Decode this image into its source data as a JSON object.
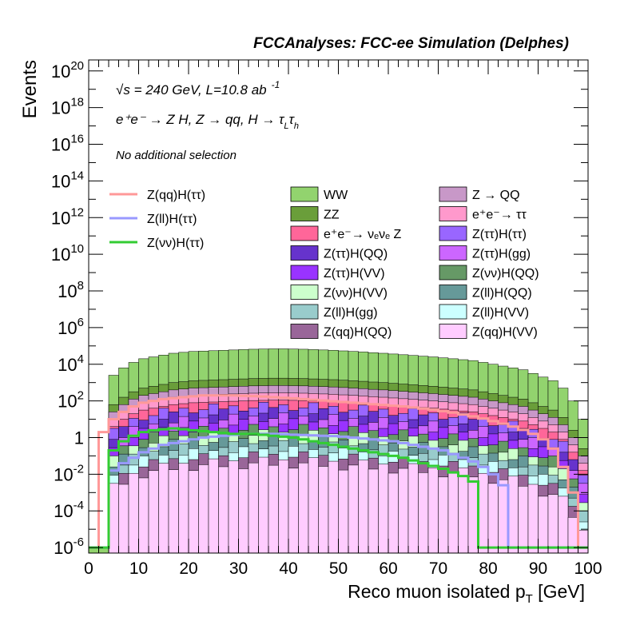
{
  "chart_data": {
    "type": "histogram",
    "title": "FCCAnalyses: FCC-ee Simulation (Delphes)",
    "xlabel": "Reco muon isolated p",
    "xlabel_sub": "T",
    "xlabel_unit": " [GeV]",
    "ylabel": "Events",
    "xlim": [
      0,
      100
    ],
    "ylim_log10": [
      -6.3,
      20.6
    ],
    "y_scale": "log",
    "bin_width": 2,
    "x_ticks": [
      "0",
      "10",
      "20",
      "30",
      "40",
      "50",
      "60",
      "70",
      "80",
      "90",
      "100"
    ],
    "y_ticks": [
      {
        "base": "10",
        "exp": "-6",
        "log": -6
      },
      {
        "base": "10",
        "exp": "-4",
        "log": -4
      },
      {
        "base": "10",
        "exp": "-2",
        "log": -2
      },
      {
        "base": "1",
        "exp": "",
        "log": 0
      },
      {
        "base": "10",
        "exp": "2",
        "log": 2
      },
      {
        "base": "10",
        "exp": "4",
        "log": 4
      },
      {
        "base": "10",
        "exp": "6",
        "log": 6
      },
      {
        "base": "10",
        "exp": "8",
        "log": 8
      },
      {
        "base": "10",
        "exp": "10",
        "log": 10
      },
      {
        "base": "10",
        "exp": "12",
        "log": 12
      },
      {
        "base": "10",
        "exp": "14",
        "log": 14
      },
      {
        "base": "10",
        "exp": "16",
        "log": 16
      },
      {
        "base": "10",
        "exp": "18",
        "log": 18
      },
      {
        "base": "10",
        "exp": "20",
        "log": 20
      }
    ],
    "annotations": {
      "energy_lumi": {
        "sqrt": "√s",
        "rest": " = 240 GeV, L=10.8 ab",
        "sup": "-1"
      },
      "process": {
        "text": "e⁺e⁻ → Z H, Z → qq, H → τ",
        "sub1": "L",
        "mid": "τ",
        "sub2": "h"
      },
      "selection": "No additional selection"
    },
    "stack_top_log10": [
      -6,
      -6,
      3.4,
      3.8,
      4.1,
      4.3,
      4.4,
      4.5,
      4.6,
      4.65,
      4.7,
      4.72,
      4.74,
      4.76,
      4.78,
      4.8,
      4.82,
      4.83,
      4.84,
      4.84,
      4.83,
      4.82,
      4.8,
      4.78,
      4.76,
      4.73,
      4.7,
      4.67,
      4.63,
      4.6,
      4.56,
      4.52,
      4.48,
      4.44,
      4.4,
      4.35,
      4.3,
      4.25,
      4.2,
      4.1,
      4.0,
      3.9,
      3.8,
      3.7,
      3.5,
      3.3,
      3.1,
      2.7,
      2.0,
      1.0
    ],
    "stack_layers": [
      {
        "name": "WW",
        "color": "#92d36e",
        "offset": 0
      },
      {
        "name": "ZZ",
        "color": "#6a9e3a",
        "offset": -1.6
      },
      {
        "name": "Z → QQ",
        "color": "#c898c8",
        "offset": -2.0
      },
      {
        "name": "e⁺e⁻→ ττ",
        "color": "#ff99cc",
        "offset": -2.4
      },
      {
        "name": "e⁺e⁻→ νₑνₑ Z",
        "color": "#ff6699",
        "offset": -2.8
      },
      {
        "name": "Z(ττ)H(ττ)",
        "color": "#9966ff",
        "offset": -3.2
      },
      {
        "name": "Z(ττ)H(QQ)",
        "color": "#6633cc",
        "offset": -3.5
      },
      {
        "name": "Z(ττ)H(gg)",
        "color": "#cc66ff",
        "offset": -3.8
      },
      {
        "name": "Z(ττ)H(VV)",
        "color": "#9933ff",
        "offset": -4.1
      },
      {
        "name": "Z(νν)H(QQ)",
        "color": "#669966",
        "offset": -4.4
      },
      {
        "name": "Z(νν)H(VV)",
        "color": "#ccffcc",
        "offset": -4.7
      },
      {
        "name": "Z(ll)H(QQ)",
        "color": "#669999",
        "offset": -5.0
      },
      {
        "name": "Z(ll)H(gg)",
        "color": "#99cccc",
        "offset": -5.3
      },
      {
        "name": "Z(ll)H(VV)",
        "color": "#ccffff",
        "offset": -5.6
      },
      {
        "name": "Z(qq)H(QQ)",
        "color": "#996699",
        "offset": -5.9
      },
      {
        "name": "Z(qq)H(VV)",
        "color": "#ffccff",
        "offset": -6.2
      }
    ],
    "signals": [
      {
        "name": "Z(qq)H(ττ)",
        "color": "#ff9999",
        "values_log10": [
          -6,
          0.3,
          1.0,
          1.4,
          1.7,
          1.9,
          2.0,
          2.1,
          2.15,
          2.2,
          2.25,
          2.3,
          2.3,
          2.3,
          2.3,
          2.28,
          2.26,
          2.24,
          2.2,
          2.17,
          2.14,
          2.1,
          2.06,
          2.02,
          1.98,
          1.94,
          1.9,
          1.86,
          1.82,
          1.78,
          1.74,
          1.7,
          1.64,
          1.58,
          1.52,
          1.44,
          1.36,
          1.26,
          1.16,
          1.04,
          0.9,
          0.76,
          0.6,
          0.42,
          0.2,
          -0.1,
          -0.6,
          -1.6,
          -3.0,
          -6
        ]
      },
      {
        "name": "Z(ll)H(ττ)",
        "color": "#9999ff",
        "values_log10": [
          -6,
          -6,
          -1.8,
          -1.4,
          -1.1,
          -0.8,
          -0.6,
          -0.4,
          -0.3,
          -0.2,
          -0.1,
          0.0,
          0.05,
          0.1,
          0.15,
          0.2,
          0.2,
          0.2,
          0.2,
          0.18,
          0.16,
          0.14,
          0.12,
          0.1,
          0.08,
          0.05,
          0.0,
          -0.05,
          -0.1,
          -0.15,
          -0.2,
          -0.3,
          -0.4,
          -0.5,
          -0.6,
          -0.7,
          -0.9,
          -1.1,
          -1.3,
          -1.6,
          -2.0,
          -2.6,
          -6,
          -6,
          -6,
          -6,
          -6,
          -6,
          -6,
          -6
        ]
      },
      {
        "name": "Z(νν)H(ττ)",
        "color": "#33cc33",
        "values_log10": [
          -6,
          -6,
          -0.7,
          -0.2,
          0.1,
          0.3,
          0.4,
          0.45,
          0.5,
          0.45,
          0.4,
          0.35,
          0.3,
          0.25,
          0.2,
          0.2,
          0.2,
          0.15,
          0.1,
          0.05,
          0.0,
          -0.1,
          -0.2,
          -0.3,
          -0.4,
          -0.5,
          -0.6,
          -0.7,
          -0.8,
          -0.9,
          -1.0,
          -1.1,
          -1.25,
          -1.4,
          -1.55,
          -1.7,
          -1.9,
          -2.1,
          -2.4,
          -6,
          -6,
          -6,
          -6,
          -6,
          -6,
          -6,
          -6,
          -6,
          -6,
          -6
        ]
      }
    ],
    "legend_col1": [
      "WW",
      "ZZ",
      "e⁺e⁻→ νₑνₑ Z",
      "Z(ττ)H(QQ)",
      "Z(ττ)H(VV)",
      "Z(νν)H(VV)",
      "Z(ll)H(gg)",
      "Z(qq)H(QQ)"
    ],
    "legend_col1_colors": [
      "#92d36e",
      "#6a9e3a",
      "#ff6699",
      "#6633cc",
      "#9933ff",
      "#ccffcc",
      "#99cccc",
      "#996699"
    ],
    "legend_col2": [
      "Z → QQ",
      "e⁺e⁻→ ττ",
      "Z(ττ)H(ττ)",
      "Z(ττ)H(gg)",
      "Z(νν)H(QQ)",
      "Z(ll)H(QQ)",
      "Z(ll)H(VV)",
      "Z(qq)H(VV)"
    ],
    "legend_col2_colors": [
      "#c898c8",
      "#ff99cc",
      "#9966ff",
      "#cc66ff",
      "#669966",
      "#669999",
      "#ccffff",
      "#ffccff"
    ],
    "legend_lines": [
      "Z(qq)H(ττ)",
      "Z(ll)H(ττ)",
      "Z(νν)H(ττ)"
    ],
    "legend_lines_colors": [
      "#ff9999",
      "#9999ff",
      "#33cc33"
    ]
  }
}
